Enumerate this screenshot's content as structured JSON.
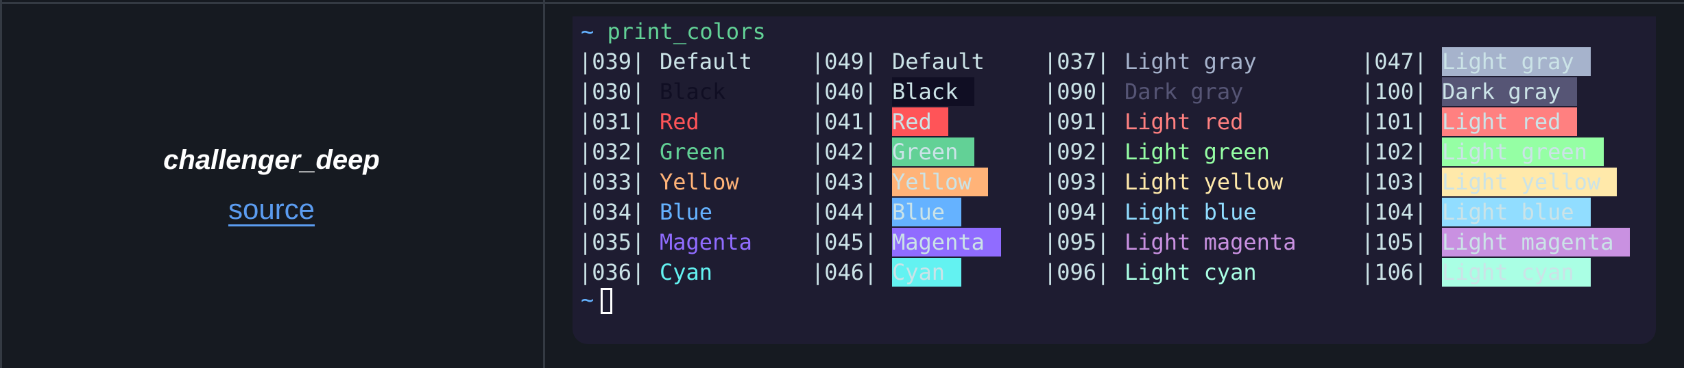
{
  "theme": {
    "name": "challenger_deep",
    "source_label": "source"
  },
  "terminal": {
    "prompt_symbol": "~",
    "command": "print_colors",
    "text_color": "#cbe3e7",
    "background": "#1e1c31",
    "columns": [
      {
        "mode": "foreground",
        "rows": [
          {
            "code": "|039|",
            "name": "Default",
            "color": "#cbe3e7"
          },
          {
            "code": "|030|",
            "name": "Black",
            "color": "#100e23"
          },
          {
            "code": "|031|",
            "name": "Red",
            "color": "#ff5458"
          },
          {
            "code": "|032|",
            "name": "Green",
            "color": "#62d196"
          },
          {
            "code": "|033|",
            "name": "Yellow",
            "color": "#ffb378"
          },
          {
            "code": "|034|",
            "name": "Blue",
            "color": "#65b2ff"
          },
          {
            "code": "|035|",
            "name": "Magenta",
            "color": "#906cff"
          },
          {
            "code": "|036|",
            "name": "Cyan",
            "color": "#63f2f1"
          }
        ]
      },
      {
        "mode": "background",
        "rows": [
          {
            "code": "|049|",
            "name": "Default",
            "color": ""
          },
          {
            "code": "|040|",
            "name": "Black",
            "color": "#100e23"
          },
          {
            "code": "|041|",
            "name": "Red",
            "color": "#ff5458"
          },
          {
            "code": "|042|",
            "name": "Green",
            "color": "#62d196"
          },
          {
            "code": "|043|",
            "name": "Yellow",
            "color": "#ffb378"
          },
          {
            "code": "|044|",
            "name": "Blue",
            "color": "#65b2ff"
          },
          {
            "code": "|045|",
            "name": "Magenta",
            "color": "#906cff"
          },
          {
            "code": "|046|",
            "name": "Cyan",
            "color": "#63f2f1"
          }
        ]
      },
      {
        "mode": "foreground",
        "rows": [
          {
            "code": "|037|",
            "name": "Light gray",
            "color": "#a6b3cc"
          },
          {
            "code": "|090|",
            "name": "Dark gray",
            "color": "#565575"
          },
          {
            "code": "|091|",
            "name": "Light red",
            "color": "#ff8080"
          },
          {
            "code": "|092|",
            "name": "Light green",
            "color": "#95ffa4"
          },
          {
            "code": "|093|",
            "name": "Light yellow",
            "color": "#ffe9aa"
          },
          {
            "code": "|094|",
            "name": "Light blue",
            "color": "#91ddff"
          },
          {
            "code": "|095|",
            "name": "Light magenta",
            "color": "#c991e1"
          },
          {
            "code": "|096|",
            "name": "Light cyan",
            "color": "#aaffe4"
          }
        ]
      },
      {
        "mode": "background",
        "rows": [
          {
            "code": "|047|",
            "name": "Light gray",
            "color": "#a6b3cc"
          },
          {
            "code": "|100|",
            "name": "Dark gray",
            "color": "#565575"
          },
          {
            "code": "|101|",
            "name": "Light red",
            "color": "#ff8080"
          },
          {
            "code": "|102|",
            "name": "Light green",
            "color": "#95ffa4"
          },
          {
            "code": "|103|",
            "name": "Light yellow",
            "color": "#ffe9aa"
          },
          {
            "code": "|104|",
            "name": "Light blue",
            "color": "#91ddff"
          },
          {
            "code": "|105|",
            "name": "Light magenta",
            "color": "#c991e1"
          },
          {
            "code": "|106|",
            "name": "Light cyan",
            "color": "#aaffe4"
          }
        ]
      }
    ]
  }
}
